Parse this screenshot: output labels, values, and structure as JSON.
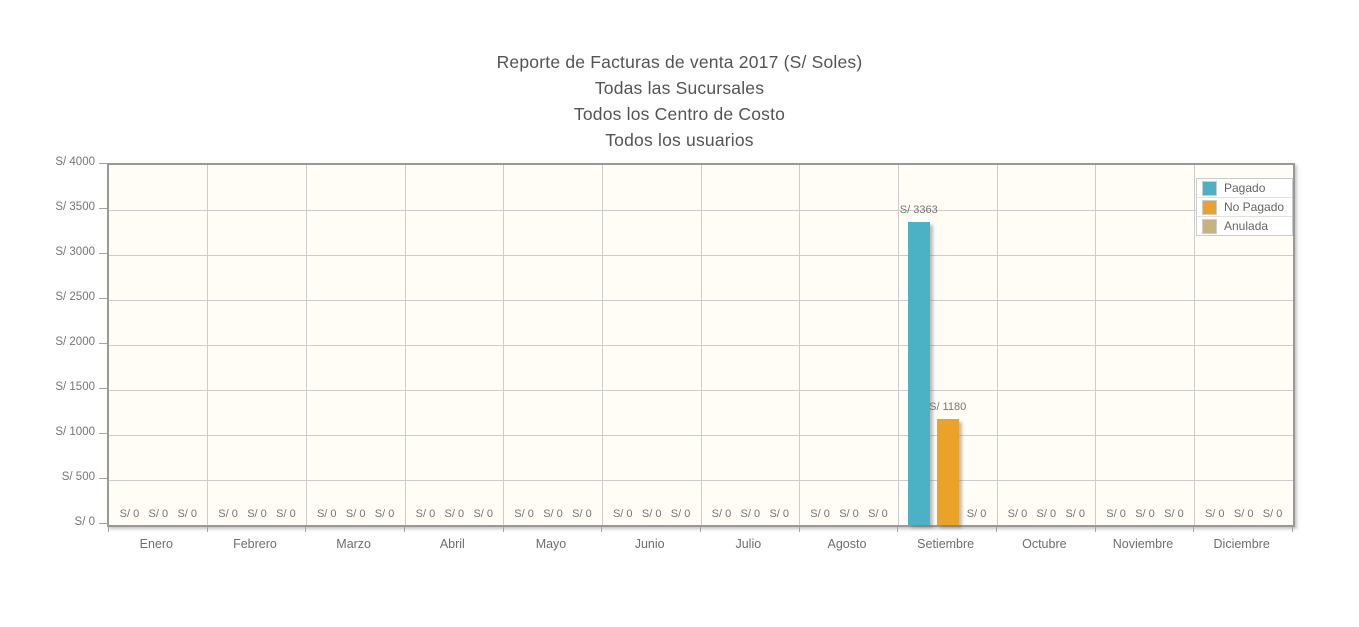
{
  "chart_data": {
    "type": "bar",
    "title": "Reporte de Facturas de venta 2017 (S/ Soles)",
    "subtitles": [
      "Todas las Sucursales",
      "Todos los Centro de Costo",
      "Todos los usuarios"
    ],
    "categories": [
      "Enero",
      "Febrero",
      "Marzo",
      "Abril",
      "Mayo",
      "Junio",
      "Julio",
      "Agosto",
      "Setiembre",
      "Octubre",
      "Noviembre",
      "Diciembre"
    ],
    "series": [
      {
        "name": "Pagado",
        "color": "#4bb2c5",
        "values": [
          0,
          0,
          0,
          0,
          0,
          0,
          0,
          0,
          3363,
          0,
          0,
          0
        ]
      },
      {
        "name": "No Pagado",
        "color": "#eaa228",
        "values": [
          0,
          0,
          0,
          0,
          0,
          0,
          0,
          0,
          1180,
          0,
          0,
          0
        ]
      },
      {
        "name": "Anulada",
        "color": "#c5b47f",
        "values": [
          0,
          0,
          0,
          0,
          0,
          0,
          0,
          0,
          0,
          0,
          0,
          0
        ]
      }
    ],
    "currency_prefix": "S/",
    "ylim": [
      0,
      4000
    ],
    "ytick_step": 500,
    "ytick_labels": [
      "S/ 0",
      "S/ 500",
      "S/ 1000",
      "S/ 1500",
      "S/ 2000",
      "S/ 2500",
      "S/ 3000",
      "S/ 3500",
      "S/ 4000"
    ],
    "point_labels_visible": [
      "S/ 3363",
      "S/ 1180",
      "S/ 0"
    ],
    "legend_position": "top-right",
    "grid": true,
    "colors": {
      "plot_background": "#fffdf6",
      "grid_line": "#cccccc",
      "plot_border": "#999999",
      "title_text": "#545454",
      "axis_text": "#757575"
    }
  }
}
